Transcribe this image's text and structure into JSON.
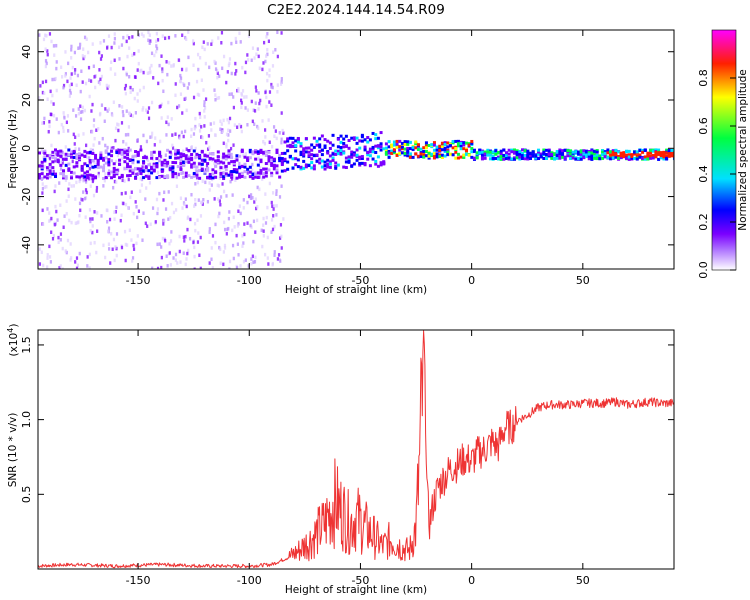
{
  "title": "C2E2.2024.144.14.54.R09",
  "colors": {
    "snr_line": "#ee3333",
    "colormap": [
      "#ffffff",
      "#7b00ff",
      "#0000ff",
      "#00e0ff",
      "#00ff40",
      "#ffff00",
      "#ff2000",
      "#ff00ff"
    ]
  },
  "chart_data": [
    {
      "type": "heatmap",
      "name": "spectrogram",
      "xlabel": "Height of straight line (km)",
      "ylabel": "Frequency (Hz)",
      "xlim": [
        -195,
        91
      ],
      "ylim": [
        -50,
        49
      ],
      "xticks": [
        -150,
        -100,
        -50,
        0,
        50
      ],
      "yticks": [
        -40,
        -20,
        0,
        20,
        40
      ],
      "colorbar": {
        "label": "Normalized spectral amplitude",
        "range": [
          0.0,
          1.0
        ],
        "ticks": [
          0.0,
          0.2,
          0.4,
          0.6,
          0.8
        ]
      }
    },
    {
      "type": "line",
      "name": "snr",
      "xlabel": "Height of straight line (km)",
      "ylabel": "SNR (10 * v/v)",
      "yscale_note": "(x10",
      "yscale_exp": "4",
      "yscale_close": ")",
      "xlim": [
        -195,
        91
      ],
      "ylim": [
        0,
        1.6
      ],
      "xticks": [
        -150,
        -100,
        -50,
        0,
        50
      ],
      "yticks": [
        0.5,
        1.0,
        1.5
      ],
      "ytick_labels": [
        "0.5",
        "1.0",
        "1.5"
      ],
      "x": [
        -195,
        -180,
        -160,
        -140,
        -120,
        -100,
        -90,
        -82,
        -78,
        -72,
        -66,
        -62,
        -58,
        -55,
        -52,
        -48,
        -44,
        -40,
        -36,
        -32,
        -28,
        -25,
        -23,
        -22,
        -21.5,
        -21,
        -20,
        -19,
        -17,
        -15,
        -12,
        -9,
        -6,
        -3,
        0,
        3,
        6,
        9,
        12,
        15,
        18,
        21,
        24,
        27,
        30,
        35,
        40,
        45,
        50,
        55,
        60,
        65,
        70,
        75,
        80,
        85,
        91
      ],
      "y": [
        0.02,
        0.03,
        0.02,
        0.03,
        0.02,
        0.02,
        0.03,
        0.08,
        0.12,
        0.2,
        0.3,
        0.45,
        0.38,
        0.3,
        0.35,
        0.28,
        0.22,
        0.15,
        0.2,
        0.15,
        0.12,
        0.28,
        0.8,
        1.3,
        1.6,
        1.25,
        0.5,
        0.3,
        0.45,
        0.55,
        0.62,
        0.68,
        0.7,
        0.74,
        0.72,
        0.78,
        0.8,
        0.85,
        0.82,
        0.95,
        0.95,
        1.0,
        1.02,
        1.05,
        1.08,
        1.1,
        1.1,
        1.1,
        1.11,
        1.11,
        1.11,
        1.12,
        1.1,
        1.11,
        1.12,
        1.11,
        1.11
      ]
    }
  ]
}
